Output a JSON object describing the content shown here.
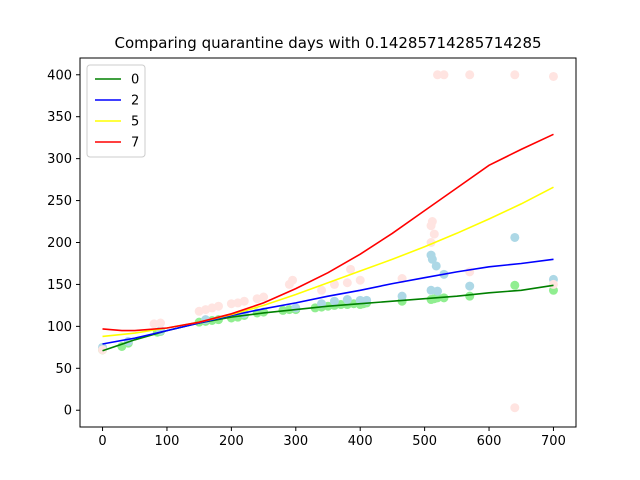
{
  "chart_data": {
    "type": "scatter",
    "title": "Comparing quarantine days with 0.14285714285714285",
    "xlabel": "",
    "ylabel": "",
    "xlim": [
      -35,
      735
    ],
    "ylim": [
      -20,
      420
    ],
    "xticks": [
      0,
      100,
      200,
      300,
      400,
      500,
      600,
      700
    ],
    "yticks": [
      0,
      50,
      100,
      150,
      200,
      250,
      300,
      350,
      400
    ],
    "legend_position": "top-left",
    "grid": false,
    "scatter_series": [
      {
        "color": "#90ee90",
        "points": [
          [
            0,
            72
          ],
          [
            30,
            76
          ],
          [
            40,
            80
          ],
          [
            85,
            93
          ],
          [
            90,
            94
          ],
          [
            150,
            105
          ],
          [
            160,
            106
          ],
          [
            170,
            107
          ],
          [
            180,
            108
          ],
          [
            200,
            110
          ],
          [
            210,
            111
          ],
          [
            220,
            113
          ],
          [
            240,
            116
          ],
          [
            250,
            117
          ],
          [
            280,
            119
          ],
          [
            290,
            120
          ],
          [
            300,
            120
          ],
          [
            330,
            122
          ],
          [
            340,
            123
          ],
          [
            350,
            124
          ],
          [
            360,
            125
          ],
          [
            370,
            126
          ],
          [
            380,
            126
          ],
          [
            390,
            127
          ],
          [
            400,
            126
          ],
          [
            405,
            127
          ],
          [
            410,
            128
          ],
          [
            465,
            130
          ],
          [
            510,
            132
          ],
          [
            515,
            133
          ],
          [
            520,
            134
          ],
          [
            530,
            134
          ],
          [
            570,
            136
          ],
          [
            640,
            149
          ],
          [
            700,
            143
          ]
        ]
      },
      {
        "color": "#add8e6",
        "points": [
          [
            0,
            75
          ],
          [
            40,
            82
          ],
          [
            90,
            95
          ],
          [
            160,
            108
          ],
          [
            220,
            115
          ],
          [
            300,
            122
          ],
          [
            340,
            127
          ],
          [
            360,
            130
          ],
          [
            380,
            132
          ],
          [
            400,
            131
          ],
          [
            410,
            131
          ],
          [
            465,
            136
          ],
          [
            510,
            143
          ],
          [
            510,
            185
          ],
          [
            512,
            180
          ],
          [
            518,
            172
          ],
          [
            520,
            142
          ],
          [
            530,
            162
          ],
          [
            570,
            148
          ],
          [
            640,
            206
          ],
          [
            700,
            156
          ]
        ]
      },
      {
        "color": "#ffe4e1",
        "points": [
          [
            0,
            72
          ],
          [
            80,
            103
          ],
          [
            90,
            104
          ],
          [
            150,
            118
          ],
          [
            160,
            120
          ],
          [
            170,
            122
          ],
          [
            180,
            124
          ],
          [
            200,
            127
          ],
          [
            210,
            128
          ],
          [
            220,
            130
          ],
          [
            240,
            133
          ],
          [
            250,
            135
          ],
          [
            290,
            150
          ],
          [
            295,
            155
          ],
          [
            340,
            143
          ],
          [
            360,
            150
          ],
          [
            380,
            152
          ],
          [
            385,
            168
          ],
          [
            400,
            155
          ],
          [
            465,
            157
          ],
          [
            510,
            200
          ],
          [
            510,
            220
          ],
          [
            512,
            225
          ],
          [
            515,
            210
          ],
          [
            520,
            400
          ],
          [
            530,
            400
          ],
          [
            570,
            400
          ],
          [
            570,
            165
          ],
          [
            640,
            400
          ],
          [
            640,
            3
          ],
          [
            700,
            398
          ],
          [
            700,
            150
          ]
        ]
      }
    ],
    "series": [
      {
        "name": "0",
        "color": "#008000",
        "x": [
          0,
          50,
          100,
          150,
          200,
          250,
          300,
          350,
          400,
          450,
          500,
          550,
          600,
          650,
          700
        ],
        "y": [
          71,
          84,
          95,
          104,
          111,
          116,
          120,
          124,
          127,
          130,
          133,
          136,
          140,
          143,
          149
        ]
      },
      {
        "name": "2",
        "color": "#0000ff",
        "x": [
          0,
          50,
          100,
          150,
          200,
          250,
          300,
          350,
          400,
          450,
          500,
          550,
          600,
          650,
          700
        ],
        "y": [
          79,
          86,
          95,
          104,
          113,
          121,
          128,
          136,
          143,
          151,
          158,
          165,
          171,
          175,
          180
        ]
      },
      {
        "name": "5",
        "color": "#ffff00",
        "x": [
          0,
          50,
          100,
          150,
          200,
          250,
          300,
          350,
          400,
          450,
          500,
          550,
          600,
          650,
          700
        ],
        "y": [
          88,
          92,
          98,
          105,
          114,
          125,
          138,
          152,
          166,
          180,
          195,
          211,
          228,
          246,
          266
        ]
      },
      {
        "name": "7",
        "color": "#ff0000",
        "x": [
          0,
          30,
          50,
          100,
          150,
          200,
          250,
          300,
          350,
          400,
          450,
          500,
          550,
          600,
          650,
          700
        ],
        "y": [
          97,
          95,
          95,
          98,
          105,
          115,
          128,
          145,
          164,
          186,
          211,
          238,
          265,
          292,
          311,
          329
        ]
      }
    ]
  }
}
